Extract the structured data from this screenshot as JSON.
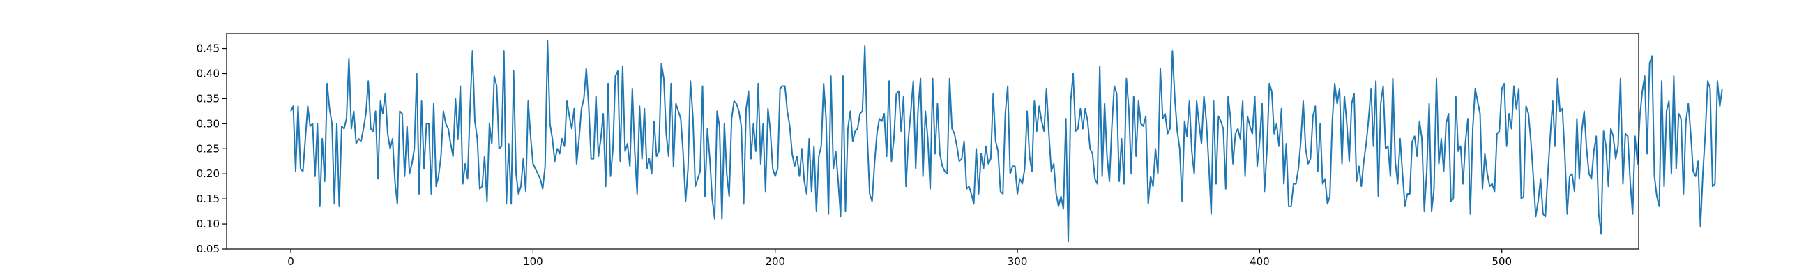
{
  "chart_data": {
    "type": "line",
    "title": "",
    "xlabel": "",
    "ylabel": "",
    "xlim": [
      -26.5,
      556.5
    ],
    "ylim": [
      0.05,
      0.48
    ],
    "x_ticks": [
      0,
      100,
      200,
      300,
      400,
      500
    ],
    "y_ticks": [
      0.05,
      0.1,
      0.15,
      0.2,
      0.25,
      0.3,
      0.35,
      0.4,
      0.45
    ],
    "grid": false,
    "legend": "none",
    "line_color": "#1f77b4",
    "series": [
      {
        "x_start": 0,
        "x_step": 1,
        "values": [
          0.325,
          0.335,
          0.205,
          0.335,
          0.21,
          0.205,
          0.27,
          0.335,
          0.295,
          0.3,
          0.195,
          0.3,
          0.135,
          0.27,
          0.185,
          0.38,
          0.33,
          0.3,
          0.14,
          0.3,
          0.135,
          0.295,
          0.29,
          0.31,
          0.43,
          0.29,
          0.325,
          0.26,
          0.27,
          0.265,
          0.29,
          0.32,
          0.385,
          0.29,
          0.285,
          0.325,
          0.19,
          0.345,
          0.32,
          0.36,
          0.28,
          0.25,
          0.27,
          0.185,
          0.14,
          0.325,
          0.32,
          0.195,
          0.295,
          0.2,
          0.22,
          0.25,
          0.4,
          0.16,
          0.345,
          0.21,
          0.3,
          0.3,
          0.16,
          0.34,
          0.175,
          0.195,
          0.235,
          0.325,
          0.3,
          0.29,
          0.26,
          0.235,
          0.35,
          0.27,
          0.375,
          0.18,
          0.22,
          0.19,
          0.33,
          0.445,
          0.305,
          0.27,
          0.17,
          0.175,
          0.235,
          0.145,
          0.3,
          0.26,
          0.395,
          0.375,
          0.25,
          0.255,
          0.445,
          0.14,
          0.26,
          0.14,
          0.405,
          0.2,
          0.16,
          0.175,
          0.23,
          0.165,
          0.345,
          0.275,
          0.22,
          0.21,
          0.2,
          0.19,
          0.17,
          0.215,
          0.465,
          0.3,
          0.27,
          0.225,
          0.25,
          0.24,
          0.27,
          0.255,
          0.345,
          0.315,
          0.29,
          0.33,
          0.22,
          0.27,
          0.33,
          0.35,
          0.41,
          0.335,
          0.23,
          0.23,
          0.355,
          0.235,
          0.27,
          0.32,
          0.175,
          0.38,
          0.195,
          0.25,
          0.395,
          0.405,
          0.225,
          0.415,
          0.245,
          0.26,
          0.215,
          0.37,
          0.245,
          0.16,
          0.335,
          0.23,
          0.33,
          0.21,
          0.23,
          0.2,
          0.305,
          0.235,
          0.245,
          0.42,
          0.39,
          0.28,
          0.235,
          0.38,
          0.215,
          0.34,
          0.325,
          0.31,
          0.24,
          0.145,
          0.21,
          0.385,
          0.315,
          0.175,
          0.19,
          0.205,
          0.375,
          0.155,
          0.29,
          0.23,
          0.15,
          0.11,
          0.325,
          0.295,
          0.11,
          0.3,
          0.2,
          0.155,
          0.31,
          0.345,
          0.34,
          0.325,
          0.295,
          0.14,
          0.33,
          0.365,
          0.23,
          0.3,
          0.245,
          0.38,
          0.22,
          0.3,
          0.165,
          0.33,
          0.285,
          0.21,
          0.195,
          0.21,
          0.37,
          0.375,
          0.375,
          0.325,
          0.295,
          0.24,
          0.215,
          0.235,
          0.195,
          0.25,
          0.185,
          0.16,
          0.27,
          0.165,
          0.255,
          0.125,
          0.235,
          0.255,
          0.38,
          0.31,
          0.12,
          0.395,
          0.21,
          0.245,
          0.185,
          0.115,
          0.395,
          0.125,
          0.29,
          0.325,
          0.265,
          0.285,
          0.29,
          0.32,
          0.325,
          0.455,
          0.275,
          0.16,
          0.145,
          0.22,
          0.28,
          0.31,
          0.305,
          0.32,
          0.235,
          0.385,
          0.225,
          0.27,
          0.36,
          0.365,
          0.285,
          0.355,
          0.175,
          0.27,
          0.325,
          0.385,
          0.21,
          0.33,
          0.39,
          0.195,
          0.325,
          0.27,
          0.17,
          0.39,
          0.24,
          0.34,
          0.24,
          0.215,
          0.205,
          0.2,
          0.39,
          0.29,
          0.28,
          0.255,
          0.225,
          0.23,
          0.265,
          0.17,
          0.175,
          0.16,
          0.14,
          0.25,
          0.16,
          0.24,
          0.21,
          0.255,
          0.22,
          0.23,
          0.36,
          0.265,
          0.245,
          0.165,
          0.16,
          0.32,
          0.375,
          0.2,
          0.215,
          0.215,
          0.16,
          0.19,
          0.18,
          0.21,
          0.325,
          0.235,
          0.205,
          0.345,
          0.285,
          0.335,
          0.305,
          0.285,
          0.37,
          0.28,
          0.205,
          0.22,
          0.16,
          0.135,
          0.155,
          0.13,
          0.31,
          0.065,
          0.345,
          0.4,
          0.285,
          0.29,
          0.33,
          0.29,
          0.33,
          0.305,
          0.25,
          0.24,
          0.19,
          0.18,
          0.415,
          0.195,
          0.34,
          0.235,
          0.185,
          0.295,
          0.375,
          0.36,
          0.185,
          0.27,
          0.18,
          0.39,
          0.33,
          0.2,
          0.355,
          0.235,
          0.345,
          0.3,
          0.295,
          0.315,
          0.14,
          0.195,
          0.175,
          0.25,
          0.2,
          0.41,
          0.31,
          0.32,
          0.28,
          0.29,
          0.445,
          0.35,
          0.285,
          0.25,
          0.145,
          0.305,
          0.275,
          0.345,
          0.245,
          0.2,
          0.345,
          0.3,
          0.26,
          0.355,
          0.305,
          0.22,
          0.12,
          0.345,
          0.18,
          0.315,
          0.305,
          0.29,
          0.17,
          0.355,
          0.31,
          0.22,
          0.28,
          0.29,
          0.27,
          0.345,
          0.195,
          0.315,
          0.295,
          0.28,
          0.355,
          0.215,
          0.265,
          0.34,
          0.165,
          0.245,
          0.38,
          0.365,
          0.28,
          0.3,
          0.255,
          0.33,
          0.18,
          0.26,
          0.135,
          0.135,
          0.18,
          0.18,
          0.21,
          0.265,
          0.345,
          0.25,
          0.22,
          0.23,
          0.315,
          0.335,
          0.205,
          0.3,
          0.18,
          0.19,
          0.14,
          0.155,
          0.305,
          0.38,
          0.34,
          0.37,
          0.22,
          0.355,
          0.3,
          0.225,
          0.34,
          0.36,
          0.185,
          0.215,
          0.175,
          0.225,
          0.26,
          0.31,
          0.37,
          0.255,
          0.385,
          0.155,
          0.34,
          0.375,
          0.25,
          0.255,
          0.195,
          0.39,
          0.225,
          0.18,
          0.27,
          0.2,
          0.135,
          0.16,
          0.16,
          0.265,
          0.275,
          0.235,
          0.305,
          0.27,
          0.125,
          0.205,
          0.34,
          0.125,
          0.17,
          0.39,
          0.22,
          0.27,
          0.205,
          0.3,
          0.32,
          0.145,
          0.15,
          0.355,
          0.245,
          0.255,
          0.18,
          0.265,
          0.31,
          0.12,
          0.29,
          0.37,
          0.345,
          0.32,
          0.17,
          0.24,
          0.2,
          0.175,
          0.18,
          0.165,
          0.28,
          0.285,
          0.37,
          0.38,
          0.255,
          0.32,
          0.29,
          0.375,
          0.33,
          0.37,
          0.15,
          0.155,
          0.335,
          0.32,
          0.265,
          0.195,
          0.115,
          0.145,
          0.19,
          0.12,
          0.115,
          0.2,
          0.275,
          0.345,
          0.255,
          0.39,
          0.325,
          0.33,
          0.24,
          0.12,
          0.195,
          0.2,
          0.165,
          0.31,
          0.19,
          0.285,
          0.325,
          0.25,
          0.2,
          0.19,
          0.245,
          0.275,
          0.12,
          0.08,
          0.285,
          0.255,
          0.175,
          0.29,
          0.275,
          0.23,
          0.255,
          0.39,
          0.18,
          0.28,
          0.275,
          0.185,
          0.12,
          0.275,
          0.22,
          0.315,
          0.365,
          0.395,
          0.24,
          0.42,
          0.435,
          0.195,
          0.155,
          0.135,
          0.385,
          0.175,
          0.325,
          0.345,
          0.2,
          0.395,
          0.21,
          0.32,
          0.31,
          0.16,
          0.305,
          0.34,
          0.28,
          0.205,
          0.195,
          0.225,
          0.095,
          0.2,
          0.28,
          0.385,
          0.37,
          0.175,
          0.18,
          0.385,
          0.335,
          0.37
        ]
      }
    ]
  }
}
